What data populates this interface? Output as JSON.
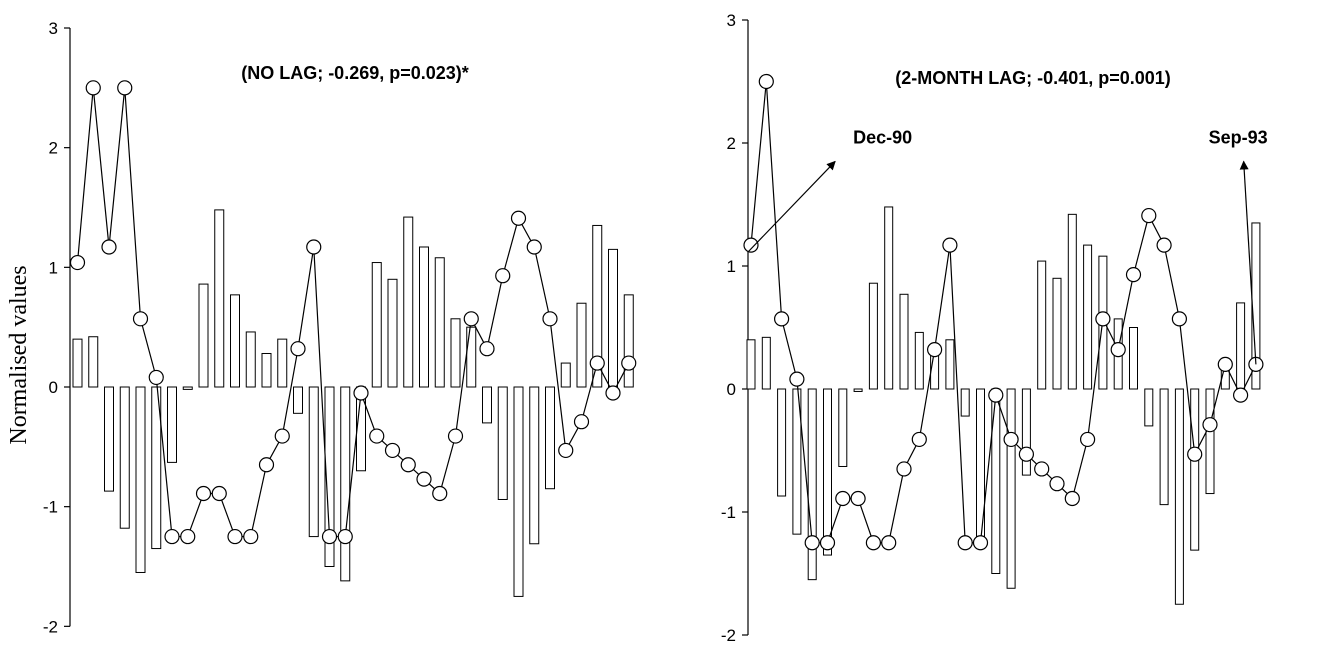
{
  "chart_data": [
    {
      "type": "bar+line",
      "title": "(NO LAG; -0.269, p=0.023)*",
      "ylabel": "Normalised values",
      "xlabel": "",
      "ylim": [
        -2,
        3
      ],
      "yticks": [
        "3",
        "2",
        "1",
        "0",
        "-1",
        "-2"
      ],
      "grid": false,
      "bars": [
        0.4,
        0.42,
        -0.87,
        -1.18,
        -1.55,
        -1.35,
        -0.63,
        -0.02,
        0.86,
        1.48,
        0.77,
        0.46,
        0.28,
        0.4,
        -0.22,
        -1.25,
        -1.5,
        -1.62,
        -0.7,
        1.04,
        0.9,
        1.42,
        1.17,
        1.08,
        0.57,
        0.5,
        -0.3,
        -0.94,
        -1.75,
        -1.31,
        -0.85,
        0.2,
        0.7,
        1.35,
        1.15,
        0.77
      ],
      "line_x": [
        0,
        1,
        2,
        3,
        4,
        5,
        6,
        7,
        8,
        9,
        10,
        11,
        12,
        13,
        14,
        15,
        16,
        17,
        18,
        19,
        20,
        21,
        22,
        23,
        24,
        25,
        26,
        27,
        28,
        29,
        30,
        31,
        32,
        33,
        34,
        35
      ],
      "line_values": [
        1.04,
        2.5,
        1.17,
        2.5,
        0.57,
        0.08,
        -1.25,
        -1.25,
        -0.89,
        -0.89,
        -1.25,
        -1.25,
        -0.65,
        -0.41,
        0.32,
        1.17,
        -1.25,
        -1.25,
        -0.05,
        -0.41,
        -0.53,
        -0.65,
        -0.77,
        -0.89,
        -0.41,
        0.57,
        0.32,
        0.93,
        1.41,
        1.17,
        0.57,
        -0.53,
        -0.29,
        0.2,
        -0.05,
        0.2
      ],
      "annotations": []
    },
    {
      "type": "bar+line",
      "title": "(2-MONTH LAG; -0.401, p=0.001)",
      "ylabel": "",
      "xlabel": "",
      "ylim": [
        -2,
        3
      ],
      "yticks": [
        "3",
        "2",
        "1",
        "0",
        "-1",
        "-2"
      ],
      "grid": false,
      "bars": [
        0.4,
        0.42,
        -0.87,
        -1.18,
        -1.55,
        -1.35,
        -0.63,
        -0.02,
        0.86,
        1.48,
        0.77,
        0.46,
        0.28,
        0.4,
        -0.22,
        -1.25,
        -1.5,
        -1.62,
        -0.7,
        1.04,
        0.9,
        1.42,
        1.17,
        1.08,
        0.57,
        0.5,
        -0.3,
        -0.94,
        -1.75,
        -1.31,
        -0.85,
        0.2,
        0.7,
        1.35
      ],
      "line_x": [
        0,
        1,
        2,
        3,
        4,
        5,
        6,
        7,
        8,
        9,
        10,
        11,
        12,
        13,
        14,
        15,
        16,
        17,
        18,
        19,
        20,
        21,
        22,
        23,
        24,
        25,
        26,
        27,
        28,
        29,
        30,
        31,
        32,
        33
      ],
      "line_values": [
        1.17,
        2.5,
        0.57,
        0.08,
        -1.25,
        -1.25,
        -0.89,
        -0.89,
        -1.25,
        -1.25,
        -0.65,
        -0.41,
        0.32,
        1.17,
        -1.25,
        -1.25,
        -0.05,
        -0.41,
        -0.53,
        -0.65,
        -0.77,
        -0.89,
        -0.41,
        0.57,
        0.32,
        0.93,
        1.41,
        1.17,
        0.57,
        -0.53,
        -0.29,
        0.2,
        -0.05,
        0.2
      ],
      "annotations": [
        {
          "text": "Dec-90",
          "from": [
            -0.15,
            1.12
          ],
          "to": [
            5.5,
            1.85
          ]
        },
        {
          "text": "Sep-93",
          "from": [
            33,
            0.2
          ],
          "to": [
            32.2,
            1.85
          ]
        }
      ]
    }
  ]
}
